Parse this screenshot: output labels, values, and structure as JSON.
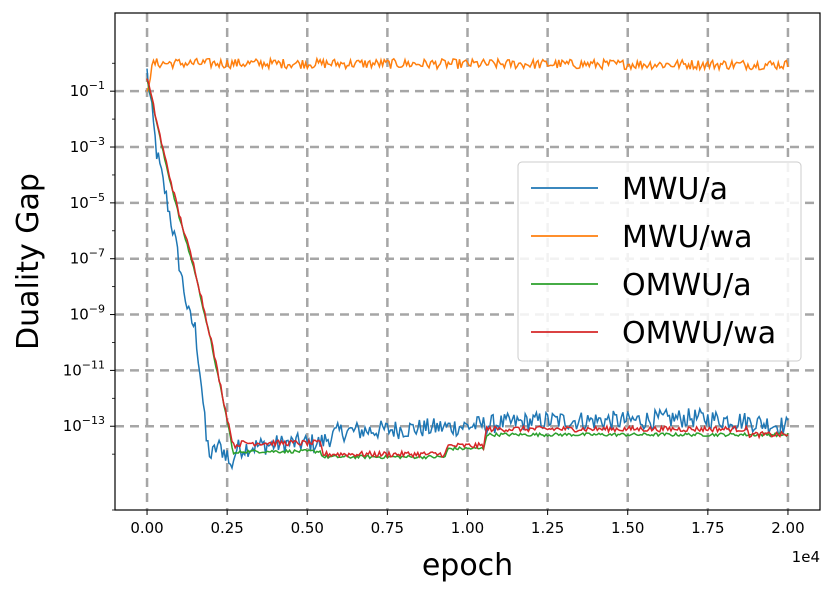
{
  "chart_data": {
    "type": "line",
    "xlabel": "epoch",
    "ylabel": "Duality Gap",
    "x_offset_label": "1e4",
    "x_scale_factor": 10000,
    "xlim": [
      -1000,
      21000
    ],
    "ylim_log10": [
      -16,
      1.8
    ],
    "yscale": "log",
    "grid": true,
    "legend_position": "center-right",
    "x_ticks": [
      0,
      2500,
      5000,
      7500,
      10000,
      12500,
      15000,
      17500,
      20000
    ],
    "x_tick_labels": [
      "0.00",
      "0.25",
      "0.50",
      "0.75",
      "1.00",
      "1.25",
      "1.50",
      "1.75",
      "2.00"
    ],
    "y_ticks": [
      {
        "exp": -13,
        "label": "10^-13"
      },
      {
        "exp": -11,
        "label": "10^-11"
      },
      {
        "exp": -9,
        "label": "10^-9"
      },
      {
        "exp": -7,
        "label": "10^-7"
      },
      {
        "exp": -5,
        "label": "10^-5"
      },
      {
        "exp": -3,
        "label": "10^-3"
      },
      {
        "exp": -1,
        "label": "10^-1"
      }
    ],
    "series": [
      {
        "name": "MWU/a",
        "color": "#1f77b4",
        "noise": 0.35,
        "points": [
          [
            0,
            -0.3
          ],
          [
            300,
            -3.2
          ],
          [
            600,
            -4.8
          ],
          [
            900,
            -6.5
          ],
          [
            1100,
            -7.8
          ],
          [
            1300,
            -9.0
          ],
          [
            1500,
            -9.5
          ],
          [
            1700,
            -11.5
          ],
          [
            1850,
            -13.5
          ],
          [
            2000,
            -14.1
          ],
          [
            2200,
            -13.7
          ],
          [
            2500,
            -14.0
          ],
          [
            2600,
            -14.5
          ],
          [
            2800,
            -13.8
          ],
          [
            3500,
            -13.7
          ],
          [
            4500,
            -13.6
          ],
          [
            5400,
            -13.6
          ],
          [
            6000,
            -13.2
          ],
          [
            8000,
            -13.1
          ],
          [
            10000,
            -13.0
          ],
          [
            11000,
            -12.9
          ],
          [
            12500,
            -12.8
          ],
          [
            15000,
            -12.8
          ],
          [
            17000,
            -12.7
          ],
          [
            18500,
            -12.8
          ],
          [
            20000,
            -13.0
          ]
        ]
      },
      {
        "name": "MWU/wa",
        "color": "#ff7f0e",
        "noise": 0.18,
        "points": [
          [
            0,
            -0.9
          ],
          [
            200,
            0.0
          ],
          [
            20000,
            -0.05
          ]
        ]
      },
      {
        "name": "OMWU/a",
        "color": "#2ca02c",
        "noise": 0.06,
        "points": [
          [
            0,
            -0.5
          ],
          [
            500,
            -3.2
          ],
          [
            1000,
            -5.5
          ],
          [
            1500,
            -7.5
          ],
          [
            2000,
            -10.0
          ],
          [
            2500,
            -12.8
          ],
          [
            2700,
            -14.0
          ],
          [
            3000,
            -13.9
          ],
          [
            5400,
            -13.9
          ],
          [
            5500,
            -14.1
          ],
          [
            9300,
            -14.1
          ],
          [
            9400,
            -13.8
          ],
          [
            10500,
            -13.8
          ],
          [
            10600,
            -13.3
          ],
          [
            20000,
            -13.3
          ]
        ]
      },
      {
        "name": "OMWU/wa",
        "color": "#d62728",
        "noise": 0.1,
        "points": [
          [
            0,
            -0.5
          ],
          [
            500,
            -3.1
          ],
          [
            1000,
            -5.4
          ],
          [
            1500,
            -7.4
          ],
          [
            2000,
            -9.9
          ],
          [
            2500,
            -12.7
          ],
          [
            2700,
            -13.7
          ],
          [
            3000,
            -13.6
          ],
          [
            5400,
            -13.6
          ],
          [
            5500,
            -14.0
          ],
          [
            9300,
            -14.0
          ],
          [
            9400,
            -13.7
          ],
          [
            10500,
            -13.7
          ],
          [
            10600,
            -13.1
          ],
          [
            18700,
            -13.1
          ],
          [
            18800,
            -13.3
          ],
          [
            20000,
            -13.3
          ]
        ]
      }
    ]
  }
}
